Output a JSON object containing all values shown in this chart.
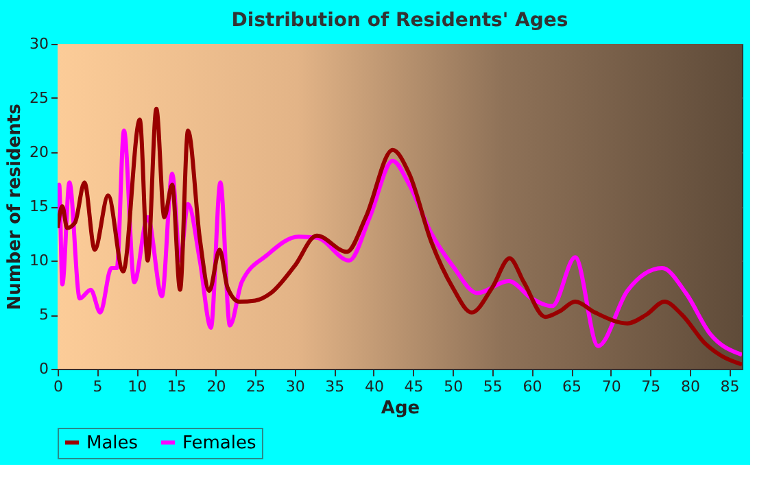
{
  "chart_data": {
    "type": "line",
    "title": "Distribution of Residents' Ages",
    "xlabel": "Age",
    "ylabel": "Number of residents",
    "xlim": [
      0,
      86.6
    ],
    "ylim": [
      0,
      30
    ],
    "xticks": [
      0,
      5,
      10,
      15,
      20,
      25,
      30,
      35,
      40,
      45,
      50,
      55,
      60,
      65,
      70,
      75,
      80,
      85
    ],
    "yticks": [
      0,
      5,
      10,
      15,
      20,
      25,
      30
    ],
    "grid": true,
    "legend": "bottom",
    "series": [
      {
        "name": "Males",
        "color": "#990000",
        "x": [
          0,
          0.6,
          1.2,
          2.2,
          3.4,
          4.7,
          6.4,
          8.3,
          10.4,
          11.4,
          12.5,
          13.5,
          14.5,
          15.5,
          16.5,
          18,
          19.2,
          20.5,
          21.5,
          23,
          25,
          27,
          30,
          32.8,
          36.6,
          39,
          42.4,
          44.5,
          47.3,
          50,
          52.4,
          55,
          57.2,
          59,
          61.7,
          63.5,
          65.5,
          68,
          72.1,
          74.5,
          76.8,
          79,
          82,
          84,
          86.6
        ],
        "values": [
          13,
          15,
          13,
          13.5,
          17.2,
          11,
          16,
          9,
          23,
          10,
          24,
          14,
          17,
          7.3,
          22,
          12,
          7.2,
          11,
          7.5,
          6.2,
          6.3,
          7,
          9.5,
          12.3,
          10.8,
          14,
          20.2,
          18,
          11.7,
          7.5,
          5.2,
          7.5,
          10.2,
          8,
          4.8,
          5.3,
          6.2,
          5.2,
          4.2,
          5,
          6.2,
          5,
          2.3,
          1.2,
          0.4
        ]
      },
      {
        "name": "Females",
        "color": "#ff00ff",
        "x": [
          0,
          0.2,
          0.6,
          1.5,
          2.8,
          4.2,
          5.4,
          6.8,
          7.5,
          8.4,
          9.7,
          11.4,
          13.2,
          14.5,
          15.5,
          16.5,
          18,
          19.4,
          20.6,
          21.8,
          23.3,
          26.5,
          30.5,
          32.8,
          36.9,
          39.5,
          42.4,
          44.5,
          47.3,
          50,
          53.1,
          57.1,
          60,
          62.6,
          65.5,
          68.4,
          72.1,
          76.5,
          79.5,
          82.6,
          86.6
        ],
        "values": [
          13,
          17,
          7.8,
          17.2,
          6.5,
          7.3,
          5.2,
          9.3,
          9.3,
          22,
          8,
          14,
          6.7,
          18,
          10,
          15.2,
          10,
          3.8,
          17.2,
          4,
          8,
          10.5,
          12.2,
          12.1,
          10,
          14,
          19.2,
          17,
          12.5,
          9.5,
          7,
          8.1,
          6.5,
          5.8,
          10.3,
          2.1,
          7.2,
          9.3,
          7,
          3.2,
          1.3
        ]
      }
    ]
  }
}
